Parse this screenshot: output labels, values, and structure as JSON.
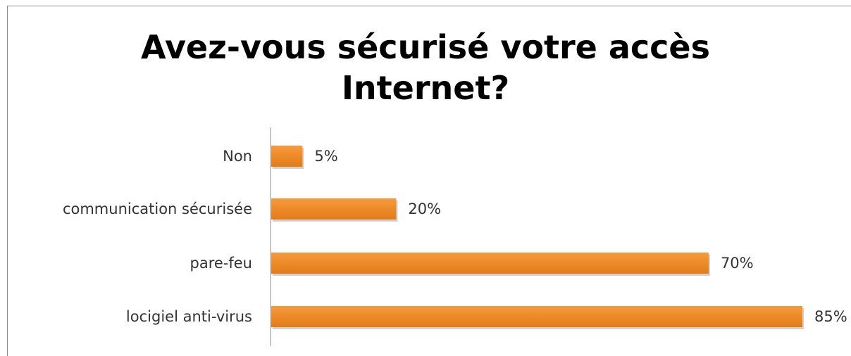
{
  "chart_data": {
    "type": "bar",
    "orientation": "horizontal",
    "title": "Avez-vous sécurisé votre accès\nInternet?",
    "categories": [
      "Non",
      "communication sécurisée",
      "pare-feu",
      "locigiel anti-virus"
    ],
    "values": [
      5,
      20,
      70,
      85
    ],
    "value_labels": [
      "5%",
      "20%",
      "70%",
      "85%"
    ],
    "xlim": [
      0,
      85
    ],
    "grid": false,
    "legend": "none",
    "colors": {
      "bar": "#f28e2c",
      "bar_dark": "#e07a12",
      "axis": "#8c8c8c"
    }
  }
}
